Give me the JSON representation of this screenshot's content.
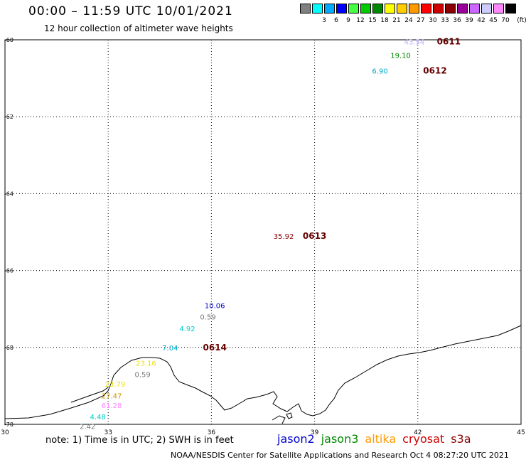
{
  "header": {
    "title": "00:00 – 11:59 UTC 10/01/2021",
    "subtitle": "12 hour collection of altimeter wave heights"
  },
  "colorbar": {
    "colors": [
      "#808080",
      "#00ffff",
      "#00aaff",
      "#0000ff",
      "#44ff44",
      "#00cc00",
      "#008800",
      "#ffff00",
      "#ffcc00",
      "#ff9900",
      "#ff0000",
      "#cc0000",
      "#880000",
      "#990099",
      "#cc66ff",
      "#ccccff",
      "#ff88ff",
      "#000000"
    ],
    "ticks": [
      "3",
      "6",
      "9",
      "12",
      "15",
      "18",
      "21",
      "24",
      "27",
      "30",
      "33",
      "36",
      "39",
      "42",
      "45",
      "70"
    ],
    "unit": "(ft)"
  },
  "chart_data": {
    "type": "scatter",
    "title": "00:00 – 11:59 UTC 10/01/2021",
    "subtitle": "12 hour collection of altimeter wave heights",
    "x_ticks": [
      "30",
      "33",
      "36",
      "39",
      "42",
      "45"
    ],
    "y_ticks": [
      "-60",
      "-62",
      "-64",
      "-66",
      "-68",
      "-70"
    ],
    "xlim": [
      30,
      45
    ],
    "ylim": [
      -70,
      -60
    ],
    "grid": true,
    "points": [
      {
        "lon": 41.9,
        "lat": -60.05,
        "swh": "43.54",
        "color": "#bbaaff"
      },
      {
        "lon": 41.5,
        "lat": -60.4,
        "swh": "19.10",
        "color": "#008800"
      },
      {
        "lon": 40.9,
        "lat": -60.8,
        "swh": "6.90",
        "color": "#00aacc"
      },
      {
        "lon": 38.1,
        "lat": -65.1,
        "swh": "35.92",
        "color": "#880000"
      },
      {
        "lon": 36.1,
        "lat": -66.9,
        "swh": "10.06",
        "color": "#0000cc"
      },
      {
        "lon": 35.9,
        "lat": -67.2,
        "swh": "0.59",
        "color": "#777777"
      },
      {
        "lon": 35.3,
        "lat": -67.5,
        "swh": "4.92",
        "color": "#00cccc"
      },
      {
        "lon": 34.8,
        "lat": -68.0,
        "swh": "7.04",
        "color": "#00aacc"
      },
      {
        "lon": 34.1,
        "lat": -68.4,
        "swh": "23.16",
        "color": "#eedd00"
      },
      {
        "lon": 34.0,
        "lat": -68.7,
        "swh": "0.59",
        "color": "#777777"
      },
      {
        "lon": 33.2,
        "lat": -68.95,
        "swh": "23.79",
        "color": "#eedd00"
      },
      {
        "lon": 33.1,
        "lat": -69.25,
        "swh": "27.47",
        "color": "#cc9900"
      },
      {
        "lon": 33.1,
        "lat": -69.5,
        "swh": "61.28",
        "color": "#ff88ff"
      },
      {
        "lon": 32.7,
        "lat": -69.8,
        "swh": "4.48",
        "color": "#00cccc"
      },
      {
        "lon": 32.4,
        "lat": -70.05,
        "swh": "2.42",
        "color": "#777777"
      }
    ],
    "pass_labels": [
      {
        "lon": 42.9,
        "lat": -60.05,
        "text": "0611"
      },
      {
        "lon": 42.5,
        "lat": -60.8,
        "text": "0612"
      },
      {
        "lon": 39.0,
        "lat": -65.1,
        "text": "0613"
      },
      {
        "lon": 36.1,
        "lat": -68.0,
        "text": "0614"
      }
    ]
  },
  "footer": {
    "note": "note: 1) Time is in UTC; 2) SWH is in feet",
    "legend": [
      {
        "name": "jason2",
        "color": "#0000cc"
      },
      {
        "name": "jason3",
        "color": "#008800"
      },
      {
        "name": "altika",
        "color": "#ff9900"
      },
      {
        "name": "cryosat",
        "color": "#cc0000"
      },
      {
        "name": "s3a",
        "color": "#880000"
      }
    ],
    "credit": "NOAA/NESDIS Center for Satellite Applications and Research    Oct  4 08:27:20 UTC 2021"
  }
}
